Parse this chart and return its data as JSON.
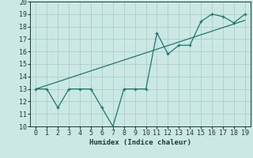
{
  "xlabel": "Humidex (Indice chaleur)",
  "x_data": [
    0,
    1,
    2,
    3,
    4,
    5,
    6,
    7,
    8,
    9,
    10,
    11,
    12,
    13,
    14,
    15,
    16,
    17,
    18,
    19
  ],
  "y_scatter": [
    13,
    13,
    11.5,
    13,
    13,
    13,
    11.5,
    10,
    13,
    13,
    13,
    17.5,
    15.8,
    16.5,
    16.5,
    18.4,
    19,
    18.8,
    18.3,
    19
  ],
  "trend_x": [
    0,
    19
  ],
  "trend_y": [
    13,
    18.5
  ],
  "line_color": "#1a7a6e",
  "bg_color": "#cce8e4",
  "grid_color": "#aacfcb",
  "xlim": [
    -0.5,
    19.5
  ],
  "ylim": [
    10,
    20
  ],
  "xticks": [
    0,
    1,
    2,
    3,
    4,
    5,
    6,
    7,
    8,
    9,
    10,
    11,
    12,
    13,
    14,
    15,
    16,
    17,
    18,
    19
  ],
  "yticks": [
    10,
    11,
    12,
    13,
    14,
    15,
    16,
    17,
    18,
    19,
    20
  ]
}
